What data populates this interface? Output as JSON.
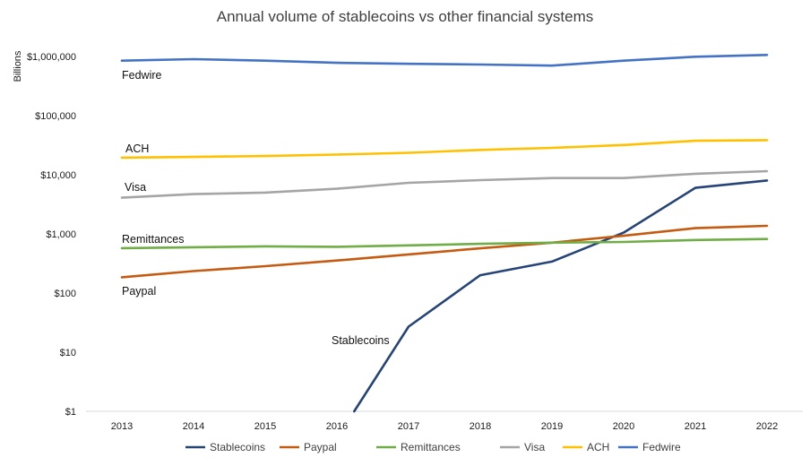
{
  "chart_data": {
    "type": "line",
    "title": "Annual volume of stablecoins vs other financial systems",
    "ylabel": "Billions",
    "xlabel": "",
    "y_scale": "log10",
    "ylim": [
      1,
      1000000
    ],
    "grid": false,
    "legend_position": "bottom",
    "x": [
      "2013",
      "2014",
      "2015",
      "2016",
      "2017",
      "2018",
      "2019",
      "2020",
      "2021",
      "2022"
    ],
    "y_ticks": [
      {
        "value": 1,
        "label": "$1"
      },
      {
        "value": 10,
        "label": "$10"
      },
      {
        "value": 100,
        "label": "$100"
      },
      {
        "value": 1000,
        "label": "$1,000"
      },
      {
        "value": 10000,
        "label": "$10,000"
      },
      {
        "value": 100000,
        "label": "$100,000"
      },
      {
        "value": 1000000,
        "label": "$1,000,000"
      }
    ],
    "series": [
      {
        "name": "Stablecoins",
        "color": "#264478",
        "values": [
          null,
          null,
          null,
          0.35,
          27,
          200,
          340,
          1050,
          6000,
          8000
        ]
      },
      {
        "name": "Paypal",
        "color": "#C55A11",
        "values": [
          185,
          235,
          285,
          355,
          450,
          570,
          710,
          930,
          1250,
          1370
        ]
      },
      {
        "name": "Remittances",
        "color": "#70AD47",
        "values": [
          575,
          595,
          615,
          605,
          640,
          680,
          710,
          730,
          790,
          820
        ]
      },
      {
        "name": "Visa",
        "color": "#A5A5A5",
        "values": [
          4100,
          4700,
          5000,
          5800,
          7300,
          8100,
          8800,
          8800,
          10400,
          11500
        ]
      },
      {
        "name": "ACH",
        "color": "#FFC000",
        "values": [
          19500,
          20000,
          20700,
          21900,
          23500,
          26300,
          28500,
          31800,
          37500,
          38500
        ]
      },
      {
        "name": "Fedwire",
        "color": "#4472C4",
        "values": [
          850000,
          900000,
          850000,
          780000,
          750000,
          730000,
          700000,
          850000,
          990000,
          1060000
        ]
      }
    ],
    "series_labels": [
      "Fedwire",
      "ACH",
      "Visa",
      "Remittances",
      "Paypal",
      "Stablecoins"
    ]
  }
}
